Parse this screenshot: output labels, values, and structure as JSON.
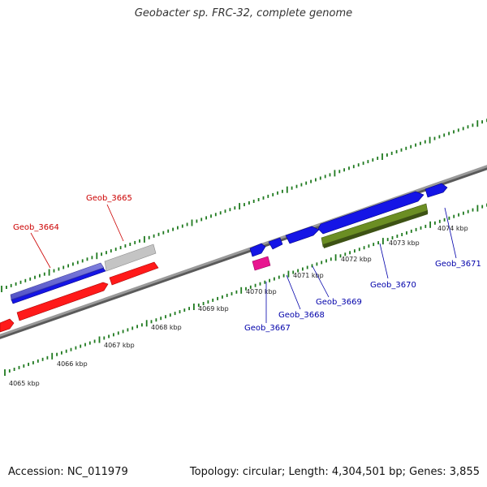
{
  "title": "Geobacter sp. FRC-32, complete genome",
  "footer": {
    "accession": "Accession: NC_011979",
    "summary": "Topology: circular; Length: 4,304,501 bp; Genes: 3,855"
  },
  "colors": {
    "background": "#ffffff",
    "backbone": "#8a8a8a",
    "tick": "#1f7a1f",
    "gene_forward": "#1515e6",
    "gene_reverse": "#ff1a1a",
    "gene_pseudo": "#b0b0b0",
    "gene_rna": "#e8158f",
    "gene_other": "#6b8e23",
    "label_reverse": "#cc0000",
    "label_forward": "#0000aa"
  },
  "scale_labels": [
    "4065 kbp",
    "4066 kbp",
    "4067 kbp",
    "4068 kbp",
    "4069 kbp",
    "4070 kbp",
    "4071 kbp",
    "4072 kbp",
    "4073 kbp",
    "4074 kbp"
  ],
  "gene_labels": [
    {
      "text": "Geob_3664",
      "strand": "reverse"
    },
    {
      "text": "Geob_3665",
      "strand": "reverse"
    },
    {
      "text": "Geob_3667",
      "strand": "forward"
    },
    {
      "text": "Geob_3668",
      "strand": "forward"
    },
    {
      "text": "Geob_3669",
      "strand": "forward"
    },
    {
      "text": "Geob_3670",
      "strand": "forward"
    },
    {
      "text": "Geob_3671",
      "strand": "forward"
    }
  ]
}
